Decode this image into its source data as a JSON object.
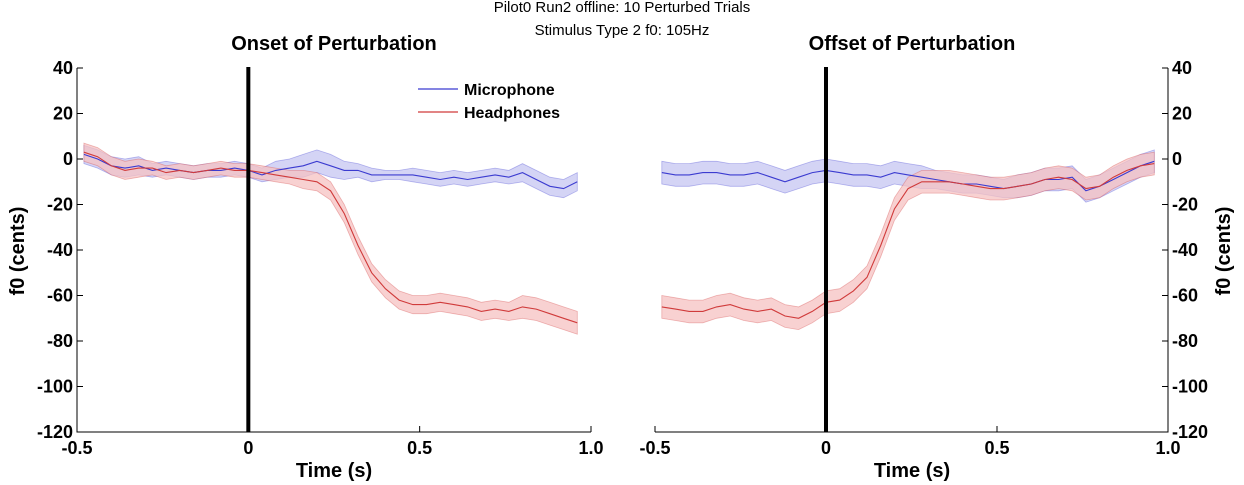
{
  "figure": {
    "suptitle_line1": "Pilot0 Run2 offline: 10 Perturbed Trials",
    "suptitle_line2": "Stimulus Type 2   f0: 105Hz"
  },
  "colors": {
    "microphone_line": "#3b3bd0",
    "microphone_band": "#c6c6f2",
    "headphones_line": "#d03b3b",
    "headphones_band": "#f6c2c2"
  },
  "chart_data": [
    {
      "type": "line",
      "title": "Onset of Perturbation",
      "xlabel": "Time (s)",
      "ylabel": "f0 (cents)",
      "xlim": [
        -0.5,
        1.0
      ],
      "ylim": [
        -120,
        40
      ],
      "xticks": [
        "-0.5",
        "0",
        "0.5",
        "1.0"
      ],
      "yticks": [
        "40",
        "20",
        "0",
        "-20",
        "-40",
        "-60",
        "-80",
        "-100",
        "-120"
      ],
      "event_line_x": 0,
      "legend": {
        "position": "top-center",
        "entries": [
          "Microphone",
          "Headphones"
        ]
      },
      "x": [
        -0.48,
        -0.44,
        -0.4,
        -0.36,
        -0.32,
        -0.28,
        -0.24,
        -0.2,
        -0.16,
        -0.12,
        -0.08,
        -0.04,
        0.0,
        0.04,
        0.08,
        0.12,
        0.16,
        0.2,
        0.24,
        0.28,
        0.32,
        0.36,
        0.4,
        0.44,
        0.48,
        0.52,
        0.56,
        0.6,
        0.64,
        0.68,
        0.72,
        0.76,
        0.8,
        0.84,
        0.88,
        0.92,
        0.96
      ],
      "series": [
        {
          "name": "Microphone",
          "values": [
            2,
            0,
            -3,
            -4,
            -3,
            -5,
            -4,
            -5,
            -6,
            -5,
            -5,
            -4,
            -5,
            -7,
            -5,
            -4,
            -3,
            -1,
            -3,
            -5,
            -5,
            -7,
            -7,
            -7,
            -7,
            -8,
            -9,
            -8,
            -9,
            -8,
            -7,
            -8,
            -6,
            -9,
            -12,
            -13,
            -10
          ],
          "band": [
            4,
            4,
            4,
            4,
            4,
            3,
            3,
            3,
            3,
            3,
            3,
            3,
            3,
            3,
            4,
            4,
            5,
            5,
            5,
            4,
            3,
            3,
            2,
            2,
            3,
            3,
            3,
            3,
            3,
            3,
            3,
            3,
            4,
            4,
            4,
            4,
            4
          ]
        },
        {
          "name": "Headphones",
          "values": [
            3,
            1,
            -3,
            -5,
            -4,
            -4,
            -6,
            -5,
            -6,
            -5,
            -4,
            -5,
            -5,
            -6,
            -7,
            -8,
            -9,
            -10,
            -14,
            -24,
            -38,
            -50,
            -57,
            -62,
            -64,
            -64,
            -63,
            -64,
            -65,
            -67,
            -66,
            -67,
            -65,
            -66,
            -68,
            -70,
            -72
          ],
          "band": [
            4,
            4,
            4,
            4,
            4,
            3,
            3,
            3,
            3,
            3,
            3,
            3,
            3,
            3,
            3,
            3,
            4,
            4,
            4,
            4,
            4,
            4,
            4,
            4,
            4,
            4,
            4,
            4,
            4,
            4,
            4,
            4,
            5,
            5,
            5,
            5,
            5
          ]
        }
      ]
    },
    {
      "type": "line",
      "title": "Offset of Perturbation",
      "xlabel": "Time (s)",
      "ylabel": "f0 (cents)",
      "xlim": [
        -0.5,
        1.0
      ],
      "ylim": [
        -120,
        40
      ],
      "xticks": [
        "-0.5",
        "0",
        "0.5",
        "1.0"
      ],
      "yticks": [
        "40",
        "20",
        "0",
        "-20",
        "-40",
        "-60",
        "-80",
        "-100",
        "-120"
      ],
      "event_line_x": 0,
      "x": [
        -0.48,
        -0.44,
        -0.4,
        -0.36,
        -0.32,
        -0.28,
        -0.24,
        -0.2,
        -0.16,
        -0.12,
        -0.08,
        -0.04,
        0.0,
        0.04,
        0.08,
        0.12,
        0.16,
        0.2,
        0.24,
        0.28,
        0.32,
        0.36,
        0.4,
        0.44,
        0.48,
        0.52,
        0.56,
        0.6,
        0.64,
        0.68,
        0.72,
        0.76,
        0.8,
        0.84,
        0.88,
        0.92,
        0.96
      ],
      "series": [
        {
          "name": "Microphone",
          "values": [
            -6,
            -7,
            -7,
            -6,
            -6,
            -7,
            -7,
            -6,
            -8,
            -10,
            -8,
            -6,
            -5,
            -6,
            -7,
            -7,
            -8,
            -6,
            -7,
            -8,
            -9,
            -10,
            -11,
            -11,
            -12,
            -13,
            -12,
            -11,
            -9,
            -9,
            -8,
            -14,
            -12,
            -9,
            -6,
            -3,
            -1
          ],
          "band": [
            5,
            5,
            5,
            5,
            5,
            5,
            5,
            5,
            5,
            5,
            5,
            5,
            5,
            5,
            5,
            5,
            5,
            5,
            5,
            5,
            4,
            4,
            4,
            4,
            4,
            4,
            5,
            5,
            5,
            5,
            5,
            5,
            5,
            5,
            5,
            5,
            5
          ]
        },
        {
          "name": "Headphones",
          "values": [
            -65,
            -66,
            -67,
            -67,
            -65,
            -64,
            -66,
            -67,
            -66,
            -69,
            -70,
            -67,
            -63,
            -62,
            -58,
            -52,
            -38,
            -22,
            -13,
            -10,
            -10,
            -10,
            -11,
            -12,
            -13,
            -13,
            -12,
            -11,
            -9,
            -8,
            -9,
            -13,
            -12,
            -8,
            -5,
            -3,
            -2
          ],
          "band": [
            5,
            5,
            5,
            5,
            5,
            5,
            5,
            5,
            5,
            5,
            5,
            5,
            5,
            5,
            5,
            5,
            5,
            5,
            5,
            5,
            5,
            5,
            5,
            5,
            5,
            5,
            5,
            5,
            5,
            5,
            5,
            5,
            5,
            5,
            5,
            5,
            5
          ]
        }
      ]
    }
  ]
}
